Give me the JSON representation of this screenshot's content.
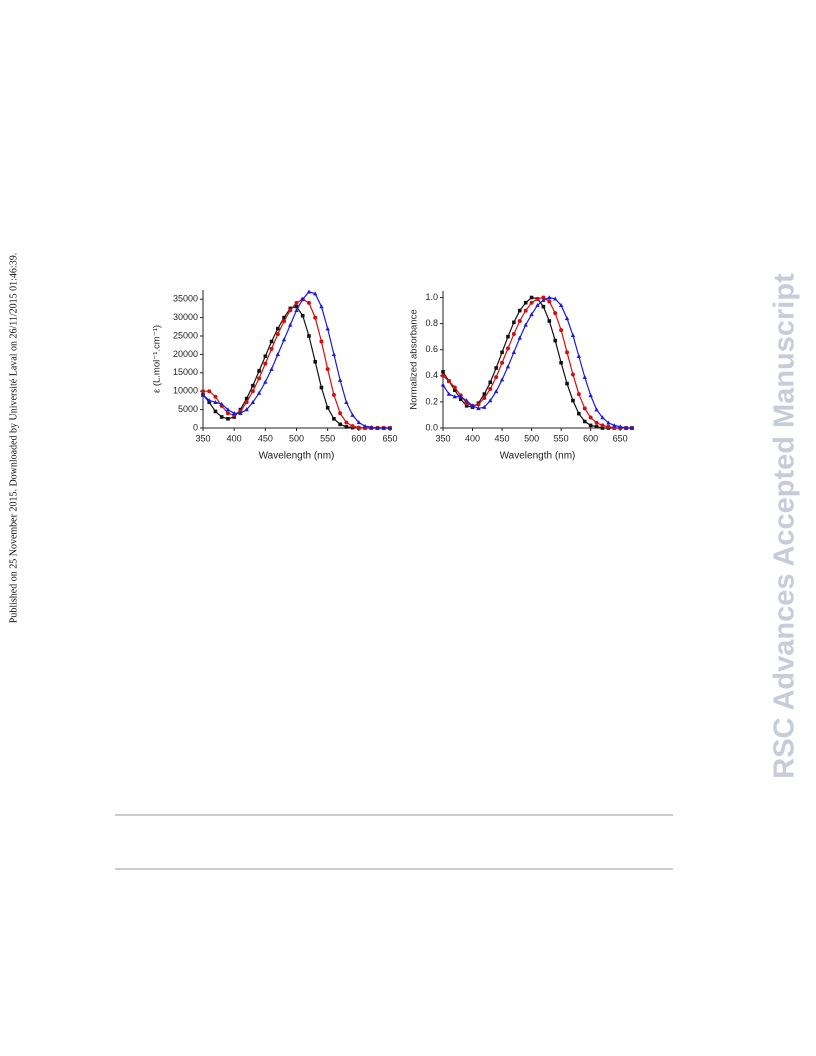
{
  "side_note": "Published on 25 November 2015. Downloaded by Université Laval on 26/11/2015 01:46:39.",
  "watermark": "RSC Advances Accepted Manuscript",
  "chart_data": [
    {
      "type": "scatter",
      "ylabel": "ε (L.mol⁻¹.cm⁻¹)",
      "xlabel": "Wavelength (nm)",
      "xlim": [
        350,
        650
      ],
      "xticks": [
        350,
        400,
        450,
        500,
        550,
        600,
        650
      ],
      "ylim": [
        0,
        37500
      ],
      "yticks": [
        0,
        5000,
        10000,
        15000,
        20000,
        25000,
        30000,
        35000
      ],
      "x": [
        350,
        360,
        370,
        380,
        390,
        400,
        410,
        420,
        430,
        440,
        450,
        460,
        470,
        480,
        490,
        500,
        510,
        520,
        530,
        540,
        550,
        560,
        570,
        580,
        590,
        600,
        610,
        620,
        630,
        640,
        650
      ],
      "series": [
        {
          "color": "#111111",
          "marker": "square",
          "values": [
            9000,
            7000,
            4500,
            3000,
            2500,
            3000,
            5000,
            8000,
            11500,
            15500,
            19500,
            23500,
            27000,
            30000,
            32500,
            33000,
            30500,
            25000,
            18000,
            11000,
            5500,
            2500,
            1000,
            300,
            100,
            0,
            0,
            0,
            0,
            0,
            0
          ]
        },
        {
          "color": "#d01010",
          "marker": "circle",
          "values": [
            10000,
            10000,
            8500,
            6000,
            4000,
            3500,
            4500,
            7000,
            10000,
            13500,
            17500,
            21500,
            25500,
            29000,
            32000,
            34000,
            35000,
            34000,
            30000,
            23500,
            16000,
            9000,
            4000,
            1500,
            500,
            100,
            0,
            0,
            0,
            0,
            0
          ]
        },
        {
          "color": "#1a1adc",
          "marker": "triangle",
          "values": [
            9000,
            7500,
            7000,
            6500,
            5000,
            4000,
            4000,
            5000,
            7000,
            9500,
            12500,
            16000,
            20000,
            24000,
            28000,
            32000,
            35000,
            37000,
            36500,
            33000,
            27000,
            20000,
            13000,
            7000,
            3500,
            1500,
            500,
            200,
            0,
            0,
            0
          ]
        }
      ]
    },
    {
      "type": "scatter",
      "ylabel": "Normalized absorbance",
      "xlabel": "Wavelength (nm)",
      "xlim": [
        350,
        670
      ],
      "xticks": [
        350,
        400,
        450,
        500,
        550,
        600,
        650
      ],
      "ylim": [
        0,
        1.05
      ],
      "yticks": [
        {
          "value": 0,
          "label": "0.0"
        },
        0.2,
        0.4,
        0.6,
        0.8,
        {
          "value": 1,
          "label": "1.0"
        }
      ],
      "x": [
        350,
        360,
        370,
        380,
        390,
        400,
        410,
        420,
        430,
        440,
        450,
        460,
        470,
        480,
        490,
        500,
        510,
        520,
        530,
        540,
        550,
        560,
        570,
        580,
        590,
        600,
        610,
        620,
        630,
        640,
        650,
        660,
        670
      ],
      "series": [
        {
          "color": "#111111",
          "marker": "square",
          "values": [
            0.43,
            0.36,
            0.29,
            0.22,
            0.17,
            0.16,
            0.19,
            0.26,
            0.35,
            0.46,
            0.58,
            0.7,
            0.81,
            0.9,
            0.96,
            1,
            0.99,
            0.93,
            0.82,
            0.67,
            0.5,
            0.34,
            0.21,
            0.11,
            0.05,
            0.02,
            0.01,
            0,
            0,
            0,
            0,
            0,
            0
          ]
        },
        {
          "color": "#d01010",
          "marker": "circle",
          "values": [
            0.4,
            0.36,
            0.31,
            0.25,
            0.19,
            0.17,
            0.18,
            0.23,
            0.3,
            0.39,
            0.5,
            0.61,
            0.72,
            0.82,
            0.9,
            0.96,
            0.99,
            1,
            0.97,
            0.88,
            0.75,
            0.58,
            0.41,
            0.26,
            0.15,
            0.08,
            0.04,
            0.02,
            0.01,
            0,
            0,
            0,
            0
          ]
        },
        {
          "color": "#1a1adc",
          "marker": "triangle",
          "values": [
            0.33,
            0.26,
            0.24,
            0.24,
            0.21,
            0.17,
            0.15,
            0.16,
            0.21,
            0.28,
            0.37,
            0.47,
            0.58,
            0.69,
            0.79,
            0.87,
            0.94,
            0.98,
            1,
            0.99,
            0.94,
            0.84,
            0.71,
            0.55,
            0.39,
            0.25,
            0.14,
            0.08,
            0.04,
            0.02,
            0.01,
            0,
            0
          ]
        }
      ]
    }
  ]
}
